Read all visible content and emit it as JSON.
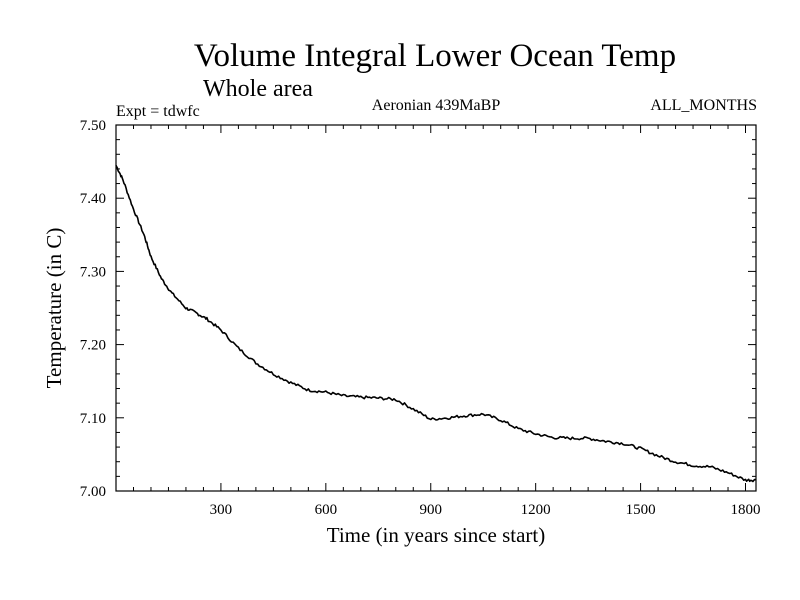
{
  "chart_data": {
    "type": "line",
    "title": "Volume Integral Lower Ocean Temp",
    "subtitle": "Whole area",
    "expt_label": "Expt = tdwfc",
    "period_label": "Aeronian 439MaBP",
    "months_label": "ALL_MONTHS",
    "xlabel": "Time (in years since start)",
    "ylabel": "Temperature (in C)",
    "xlim": [
      0,
      1830
    ],
    "ylim": [
      7.0,
      7.5
    ],
    "x_ticks": [
      "300",
      "600",
      "900",
      "1200",
      "1500",
      "1800"
    ],
    "y_ticks": [
      "7.00",
      "7.10",
      "7.20",
      "7.30",
      "7.40",
      "7.50"
    ],
    "line_color": "#000000",
    "series": [
      {
        "name": "tdwfc",
        "x": [
          0,
          20,
          50,
          80,
          100,
          130,
          160,
          200,
          230,
          260,
          300,
          350,
          400,
          450,
          500,
          550,
          600,
          650,
          700,
          750,
          800,
          850,
          900,
          950,
          1000,
          1050,
          1100,
          1150,
          1200,
          1250,
          1300,
          1350,
          1400,
          1450,
          1500,
          1550,
          1600,
          1650,
          1700,
          1750,
          1800,
          1830
        ],
        "y": [
          7.445,
          7.425,
          7.385,
          7.35,
          7.32,
          7.29,
          7.27,
          7.25,
          7.243,
          7.235,
          7.22,
          7.195,
          7.175,
          7.16,
          7.148,
          7.138,
          7.135,
          7.13,
          7.128,
          7.127,
          7.125,
          7.112,
          7.098,
          7.1,
          7.103,
          7.105,
          7.097,
          7.085,
          7.078,
          7.073,
          7.072,
          7.072,
          7.068,
          7.065,
          7.058,
          7.048,
          7.04,
          7.035,
          7.033,
          7.025,
          7.015,
          7.015
        ]
      }
    ]
  }
}
